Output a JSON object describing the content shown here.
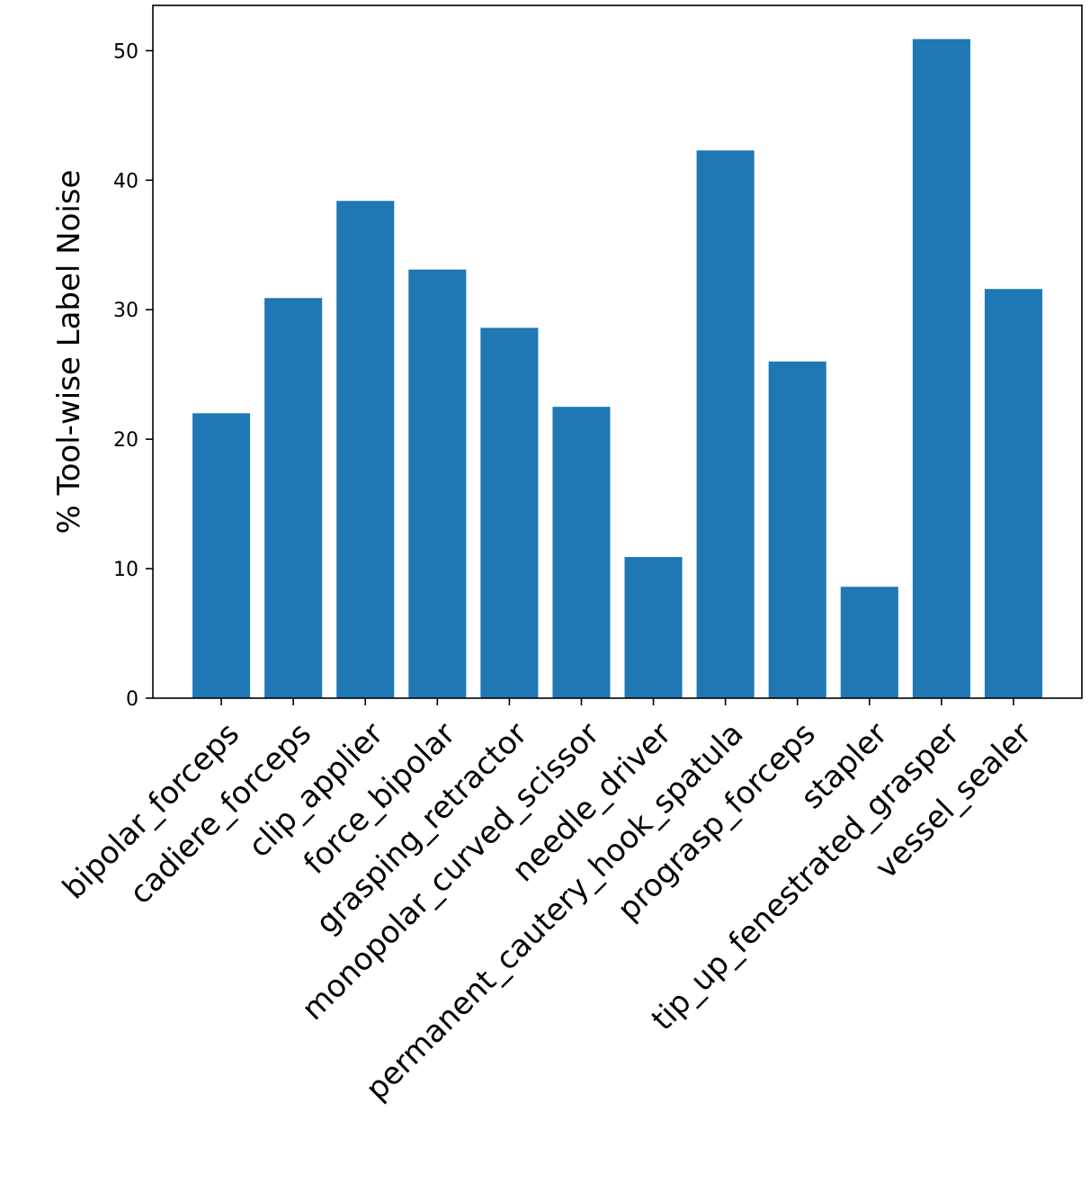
{
  "chart_data": {
    "type": "bar",
    "title": "",
    "xlabel": "",
    "ylabel": "% Tool-wise Label Noise",
    "categories": [
      "bipolar_forceps",
      "cadiere_forceps",
      "clip_applier",
      "force_bipolar",
      "grasping_retractor",
      "monopolar_curved_scissor",
      "needle_driver",
      "permanent_cautery_hook_spatula",
      "prograsp_forceps",
      "stapler",
      "tip_up_fenestrated_grasper",
      "vessel_sealer"
    ],
    "values": [
      22.0,
      30.9,
      38.4,
      33.1,
      28.6,
      22.5,
      10.9,
      42.3,
      26.0,
      8.6,
      50.9,
      31.6
    ],
    "yticks": [
      0,
      10,
      20,
      30,
      40,
      50
    ],
    "ylim": [
      0,
      53.5
    ],
    "grid": false,
    "color": "#1f77b4"
  }
}
